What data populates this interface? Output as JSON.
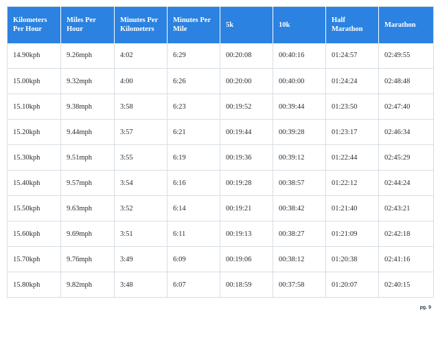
{
  "table": {
    "headers": [
      "Kilometers Per Hour",
      "Miles Per Hour",
      "Minutes Per Kilometers",
      "Minutes Per Mile",
      "5k",
      "10k",
      "Half Marathon",
      "Marathon"
    ],
    "rows": [
      [
        "14.90kph",
        "9.26mph",
        "4:02",
        "6:29",
        "00:20:08",
        "00:40:16",
        "01:24:57",
        "02:49:55"
      ],
      [
        "15.00kph",
        "9.32mph",
        "4:00",
        "6:26",
        "00:20:00",
        "00:40:00",
        "01:24:24",
        "02:48:48"
      ],
      [
        "15.10kph",
        "9.38mph",
        "3:58",
        "6:23",
        "00:19:52",
        "00:39:44",
        "01:23:50",
        "02:47:40"
      ],
      [
        "15.20kph",
        "9.44mph",
        "3:57",
        "6:21",
        "00:19:44",
        "00:39:28",
        "01:23:17",
        "02:46:34"
      ],
      [
        "15.30kph",
        "9.51mph",
        "3:55",
        "6:19",
        "00:19:36",
        "00:39:12",
        "01:22:44",
        "02:45:29"
      ],
      [
        "15.40kph",
        "9.57mph",
        "3:54",
        "6:16",
        "00:19:28",
        "00:38:57",
        "01:22:12",
        "02:44:24"
      ],
      [
        "15.50kph",
        "9.63mph",
        "3:52",
        "6:14",
        "00:19:21",
        "00:38:42",
        "01:21:40",
        "02:43:21"
      ],
      [
        "15.60kph",
        "9.69mph",
        "3:51",
        "6:11",
        "00:19:13",
        "00:38:27",
        "01:21:09",
        "02:42:18"
      ],
      [
        "15.70kph",
        "9.76mph",
        "3:49",
        "6:09",
        "00:19:06",
        "00:38:12",
        "01:20:38",
        "02:41:16"
      ],
      [
        "15.80kph",
        "9.82mph",
        "3:48",
        "6:07",
        "00:18:59",
        "00:37:58",
        "01:20:07",
        "02:40:15"
      ]
    ]
  },
  "footer": {
    "page_label": "pg. 9"
  },
  "colors": {
    "header_background": "#2b82e0",
    "header_text": "#ffffff",
    "cell_text": "#2a2a2a",
    "grid_line": "#d6dde6",
    "page_number": "#1f3a5c"
  }
}
